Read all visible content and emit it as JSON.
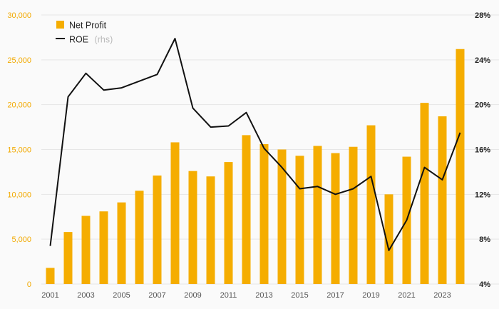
{
  "chart_data": {
    "type": "bar",
    "title": "",
    "xlabel": "",
    "ylabel": "",
    "categories": [
      "2001",
      "2002",
      "2003",
      "2004",
      "2005",
      "2006",
      "2007",
      "2008",
      "2009",
      "2010",
      "2011",
      "2012",
      "2013",
      "2014",
      "2015",
      "2016",
      "2017",
      "2018",
      "2019",
      "2020",
      "2021",
      "2022",
      "2023",
      "2024"
    ],
    "x_tick_labels": [
      "2001",
      "2003",
      "2005",
      "2007",
      "2009",
      "2011",
      "2013",
      "2015",
      "2017",
      "2019",
      "2021",
      "2023"
    ],
    "series": [
      {
        "name": "Net Profit",
        "type": "bar",
        "axis": "left",
        "color": "#f5ad00",
        "values": [
          1800,
          5800,
          7600,
          8100,
          9100,
          10400,
          12100,
          15800,
          12600,
          12000,
          13600,
          16600,
          15600,
          15000,
          14300,
          15400,
          14600,
          15300,
          17700,
          10000,
          14200,
          20200,
          18700,
          26200
        ]
      },
      {
        "name": "ROE",
        "name_note": "(rhs)",
        "type": "line",
        "axis": "right",
        "color": "#111111",
        "values": [
          7.4,
          20.7,
          22.8,
          21.3,
          21.5,
          22.1,
          22.7,
          25.9,
          19.7,
          18.0,
          18.1,
          19.3,
          16.1,
          14.4,
          12.5,
          12.7,
          12.0,
          12.5,
          13.6,
          7.0,
          9.7,
          14.4,
          13.3,
          17.5
        ]
      }
    ],
    "left_axis": {
      "ylim": [
        0,
        30000
      ],
      "ticks": [
        "0",
        "5,000",
        "10,000",
        "15,000",
        "20,000",
        "25,000",
        "30,000"
      ],
      "color": "#f2a900"
    },
    "right_axis": {
      "ylim": [
        4,
        28
      ],
      "ticks": [
        "4%",
        "8%",
        "12%",
        "16%",
        "20%",
        "24%",
        "28%"
      ]
    },
    "grid": true,
    "legend_position": "top-left"
  }
}
